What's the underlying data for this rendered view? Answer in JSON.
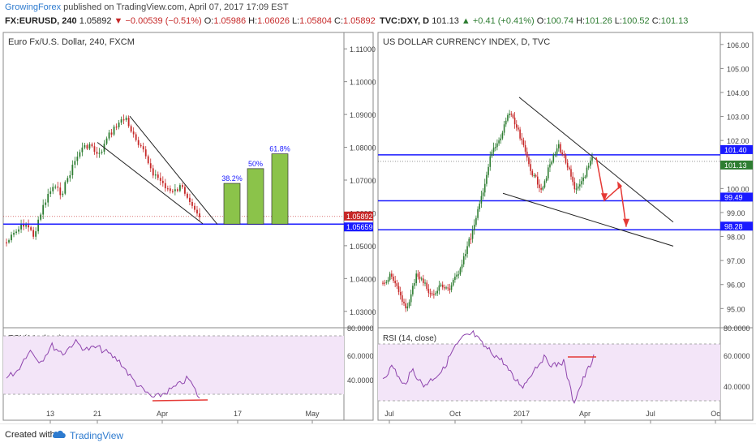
{
  "header": {
    "author": "GrowingForex",
    "published_text": " published on TradingView.com, April 07, 2017 17:09 EST",
    "left_symbol": "FX:EURUSD, 240",
    "left_price": "1.05892",
    "left_change": "−0.00539 (−0.51%)",
    "left_ohlc": {
      "o": "1.05986",
      "h": "1.06026",
      "l": "1.05804",
      "c": "1.05892"
    },
    "right_symbol": "TVC:DXY, D",
    "right_price": "101.13",
    "right_change": "+0.41 (+0.41%)",
    "right_ohlc": {
      "o": "100.74",
      "h": "101.26",
      "l": "100.52",
      "c": "101.13"
    }
  },
  "footer": {
    "created_with": "Created with",
    "brand": "TradingView"
  },
  "colors": {
    "up": "#2e7d32",
    "down": "#c62828",
    "line_blue": "#1a1aff",
    "rsi": "#8e44ad",
    "rsi_band": "#f3e5f8",
    "bar_fill": "#8bc34a",
    "arrow": "#e53935"
  },
  "chart_data": [
    {
      "type": "candlestick",
      "title": "Euro Fx/U.S. Dollar, 240, FXCM",
      "ylim": [
        1.025,
        1.115
      ],
      "yticks": [
        "1.11000",
        "1.10000",
        "1.09000",
        "1.08000",
        "1.07000",
        "1.06000",
        "1.05000",
        "1.04000",
        "1.03000"
      ],
      "xticks": [
        "13",
        "21",
        "Apr",
        "17",
        "May"
      ],
      "price_labels": {
        "current": "1.05892",
        "support": "1.05659"
      },
      "horizontal_line": 1.05659,
      "wedge": {
        "upper": [
          [
            1.0895,
            "top"
          ],
          [
            1.0565,
            "apex"
          ]
        ],
        "lower": [
          [
            1.0815
          ],
          [
            1.0567
          ]
        ]
      },
      "targets": [
        {
          "label": "38.2%",
          "value": 1.069
        },
        {
          "label": "50%",
          "value": 1.0735
        },
        {
          "label": "61.8%",
          "value": 1.078
        }
      ],
      "rsi": {
        "title": "RSI (14, close)",
        "yticks": [
          "80.0000",
          "60.0000",
          "40.0000"
        ],
        "band": [
          30,
          70
        ]
      }
    },
    {
      "type": "candlestick",
      "title": "US DOLLAR CURRENCY INDEX, D, TVC",
      "ylim": [
        94.2,
        106.5
      ],
      "yticks": [
        "106.00",
        "105.00",
        "104.00",
        "103.00",
        "102.00",
        "101.00",
        "100.00",
        "99.00",
        "98.00",
        "97.00",
        "96.00",
        "95.00"
      ],
      "xticks": [
        "Jul",
        "Oct",
        "2017",
        "Apr",
        "Jul",
        "Oc"
      ],
      "price_labels": {
        "resistance": "101.40",
        "current": "101.13",
        "support1": "99.49",
        "support2": "98.28"
      },
      "horizontal_lines": [
        101.4,
        99.49,
        98.28
      ],
      "rsi": {
        "title": "RSI (14, close)",
        "yticks": [
          "80.0000",
          "60.0000",
          "40.0000"
        ],
        "band": [
          30,
          70
        ]
      }
    }
  ]
}
